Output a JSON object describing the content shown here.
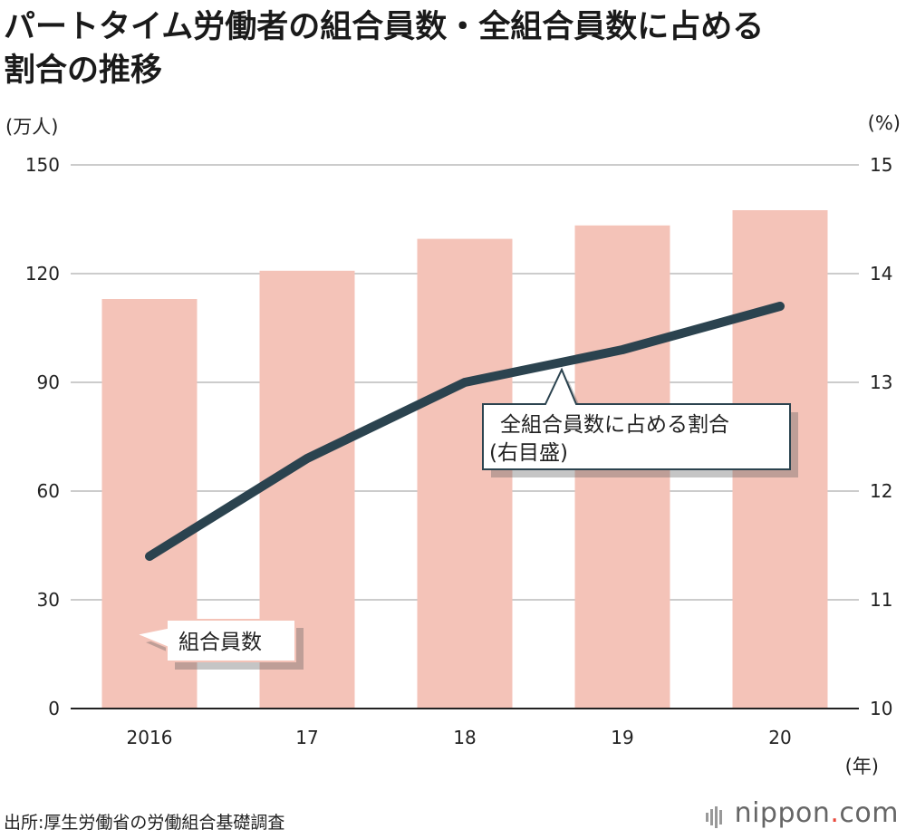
{
  "chart_data": {
    "type": "bar+line",
    "title_lines": [
      "パートタイム労働者の組合員数・全組合員数に占める",
      "割合の推移"
    ],
    "categories": [
      "2016",
      "17",
      "18",
      "19",
      "20"
    ],
    "x_unit": "(年)",
    "y_left": {
      "unit": "(万人)",
      "ticks": [
        0,
        30,
        60,
        90,
        120,
        150
      ],
      "lim": [
        0,
        150
      ]
    },
    "y_right": {
      "unit": "(%)",
      "ticks": [
        10,
        11,
        12,
        13,
        14,
        15
      ],
      "lim": [
        10,
        15
      ]
    },
    "bar_series": {
      "label": "組合員数",
      "values": [
        113.0,
        120.8,
        129.6,
        133.3,
        137.5
      ],
      "color": "#f4c3b8"
    },
    "line_series": {
      "label_lines": [
        "全組合員数に占める割合",
        "(右目盛)"
      ],
      "values": [
        11.4,
        12.3,
        13.0,
        13.3,
        13.7
      ],
      "color": "#2b434f"
    },
    "grid": true
  },
  "source": "出所:厚生労働省の労働組合基礎調査",
  "brand": {
    "name": "nippon",
    "dot": ".",
    "suffix": "com"
  }
}
